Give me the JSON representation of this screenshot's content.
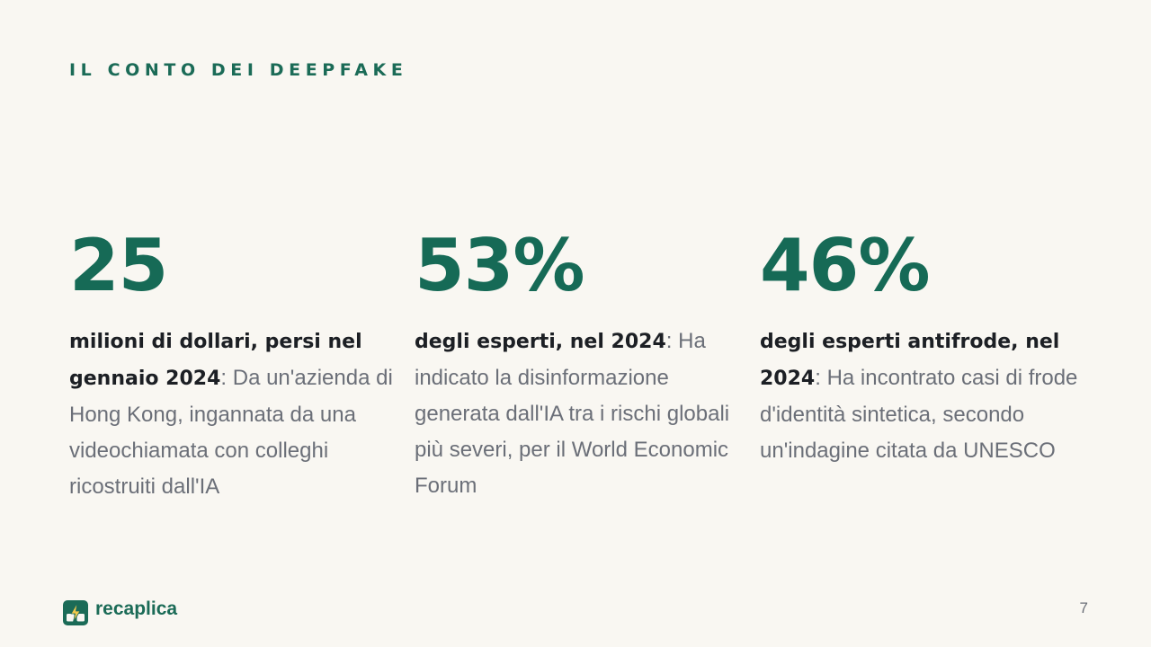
{
  "header": {
    "kicker": "IL CONTO DEI DEEPFAKE"
  },
  "stats": [
    {
      "value": "25",
      "lead": "milioni di dollari, persi nel gennaio 2024",
      "separator": ": ",
      "body": "Da un'azienda di Hong Kong, ingannata da una videochiamata con colleghi ricostruiti dall'IA"
    },
    {
      "value": "53%",
      "lead": "degli esperti, nel 2024",
      "separator": ": ",
      "body": "Ha indicato la disinformazione generata dall'IA tra i rischi globali più severi, per il World Economic Forum"
    },
    {
      "value": "46%",
      "lead": "degli esperti antifrode, nel 2024",
      "separator": ": ",
      "body": "Ha incontrato casi di frode d'identità sintetica, secondo un'indagine citata da UNESCO"
    }
  ],
  "footer": {
    "brand": "recaplica",
    "logo_icon": "lightning-card-icon",
    "page_number": "7"
  },
  "colors": {
    "background": "#f9f7f2",
    "accent": "#1b6b57",
    "lead_text": "#1c1f24",
    "body_text": "#6b6f78",
    "logo_bolt": "#f2c94c"
  }
}
